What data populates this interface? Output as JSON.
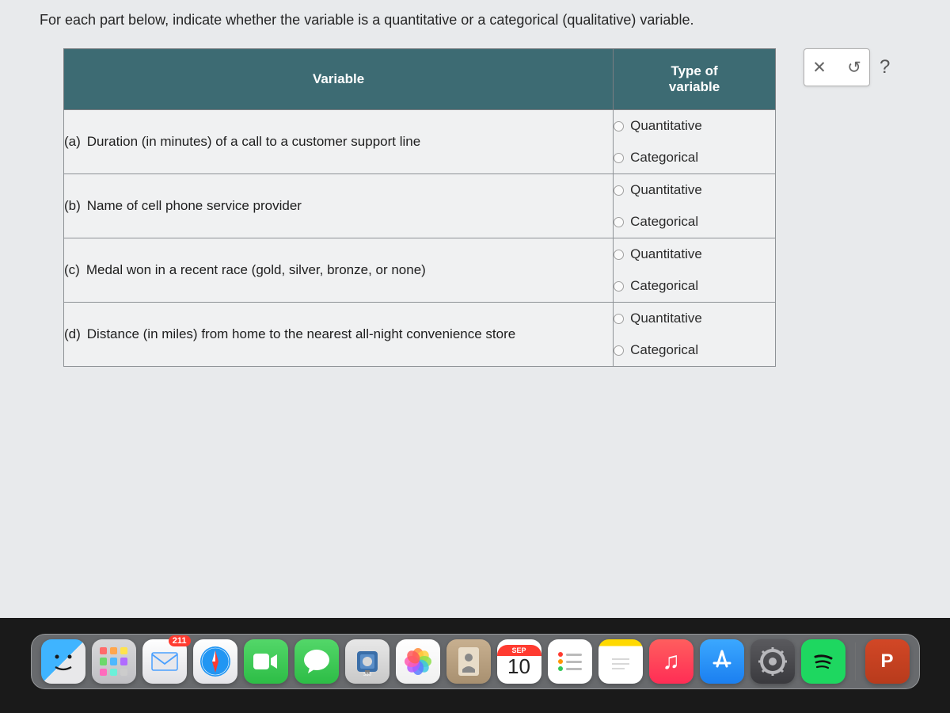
{
  "question": {
    "prompt": "For each part below, indicate whether the variable is a quantitative or a categorical (qualitative) variable.",
    "headers": {
      "variable": "Variable",
      "type": "Type of\nvariable"
    },
    "option_labels": {
      "quantitative": "Quantitative",
      "categorical": "Categorical"
    },
    "parts": [
      {
        "label": "(a)",
        "text": "Duration (in minutes) of a call to a customer support line"
      },
      {
        "label": "(b)",
        "text": "Name of cell phone service provider"
      },
      {
        "label": "(c)",
        "text": "Medal won in a recent race (gold, silver, bronze, or none)"
      },
      {
        "label": "(d)",
        "text": "Distance (in miles) from home to the nearest all-night convenience store"
      }
    ]
  },
  "actions": {
    "close": "✕",
    "undo": "↺",
    "help": "?"
  },
  "dock": {
    "mail_badge": "211",
    "calendar": {
      "month": "SEP",
      "date": "10"
    },
    "powerpoint_label": "P",
    "launchpad_colors": [
      "#ff6b6b",
      "#ffa64d",
      "#ffe34d",
      "#6bd96b",
      "#4db8ff",
      "#b06bff",
      "#ff6bbd",
      "#6bf0d9",
      "#cccccc"
    ],
    "photos_petals": [
      "#ff8c3b",
      "#ffcf3b",
      "#8ce04a",
      "#3bc7e0",
      "#5a7dff",
      "#b25aff",
      "#ff5ab2",
      "#ff5a5a"
    ],
    "reminders_dots": [
      "#ff3b30",
      "#ff9500",
      "#34c759"
    ]
  },
  "colors": {
    "table_header_bg": "#3d6b73",
    "table_border": "#8e9296"
  }
}
